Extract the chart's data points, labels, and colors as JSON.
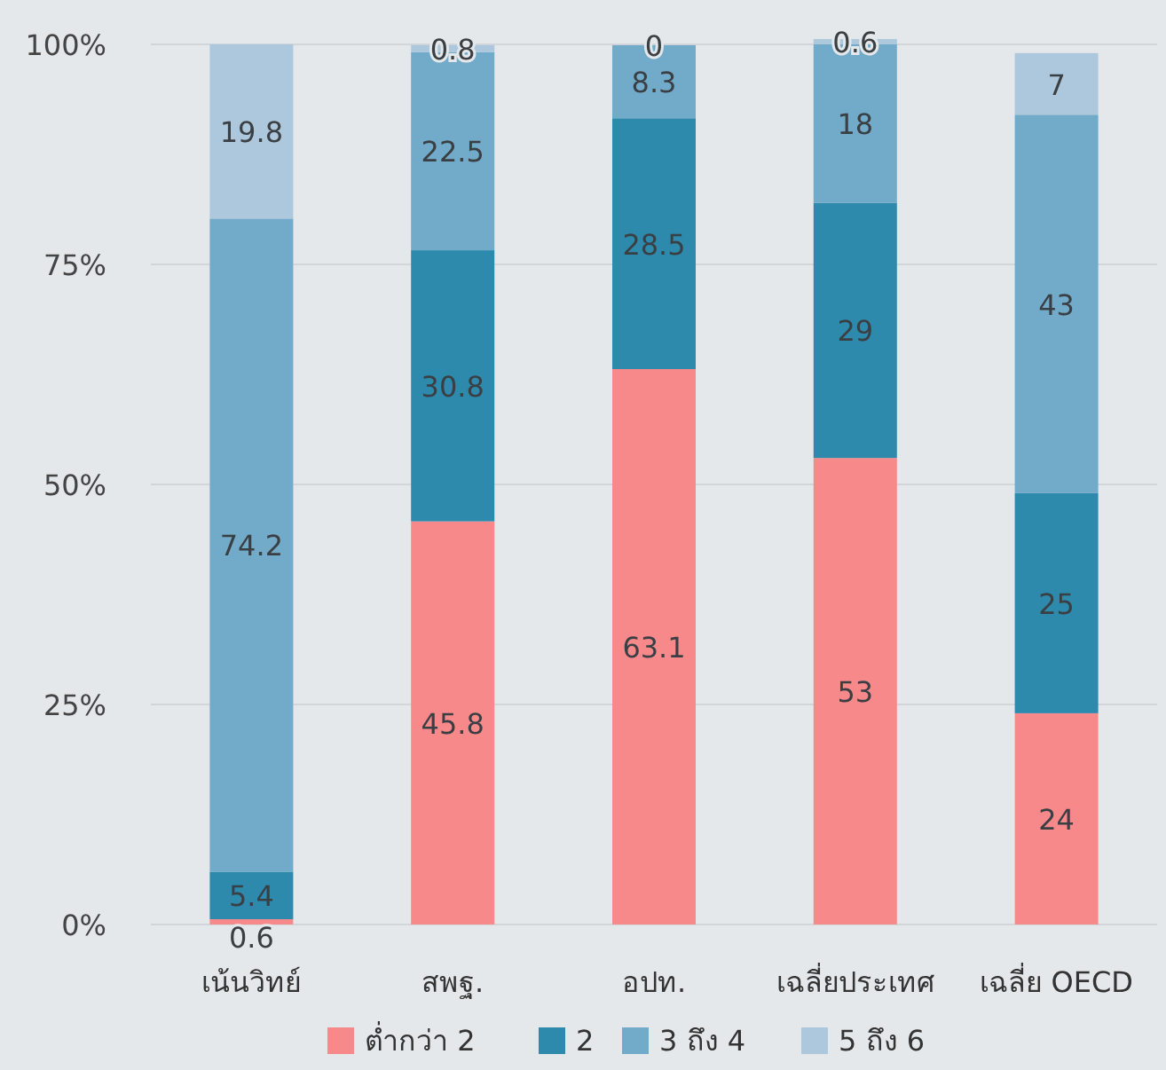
{
  "chart_data": {
    "type": "bar",
    "stacked": true,
    "categories": [
      "เน้นวิทย์",
      "สพฐ.",
      "อปท.",
      "เฉลี่ยประเทศ",
      "เฉลี่ย OECD"
    ],
    "series": [
      {
        "name": "ต่ำกว่า 2",
        "color": "#f8898b",
        "values": [
          0.6,
          45.8,
          63.1,
          53,
          24
        ]
      },
      {
        "name": "2",
        "color": "#2e8aad",
        "values": [
          5.4,
          30.8,
          28.5,
          29,
          25
        ]
      },
      {
        "name": "3 ถึง 4",
        "color": "#72aac9",
        "values": [
          74.2,
          22.5,
          8.3,
          18,
          43
        ]
      },
      {
        "name": "5 ถึง 6",
        "color": "#adc8dc",
        "values": [
          19.8,
          0.8,
          0,
          0.6,
          7
        ]
      }
    ],
    "ylim": [
      0,
      101
    ],
    "yticks": [
      {
        "value": 0,
        "label": "0%"
      },
      {
        "value": 25,
        "label": "25%"
      },
      {
        "value": 50,
        "label": "50%"
      },
      {
        "value": 75,
        "label": "75%"
      },
      {
        "value": 100,
        "label": "100%"
      }
    ],
    "grid": "y",
    "legend": "bottom",
    "data_labels": true
  }
}
